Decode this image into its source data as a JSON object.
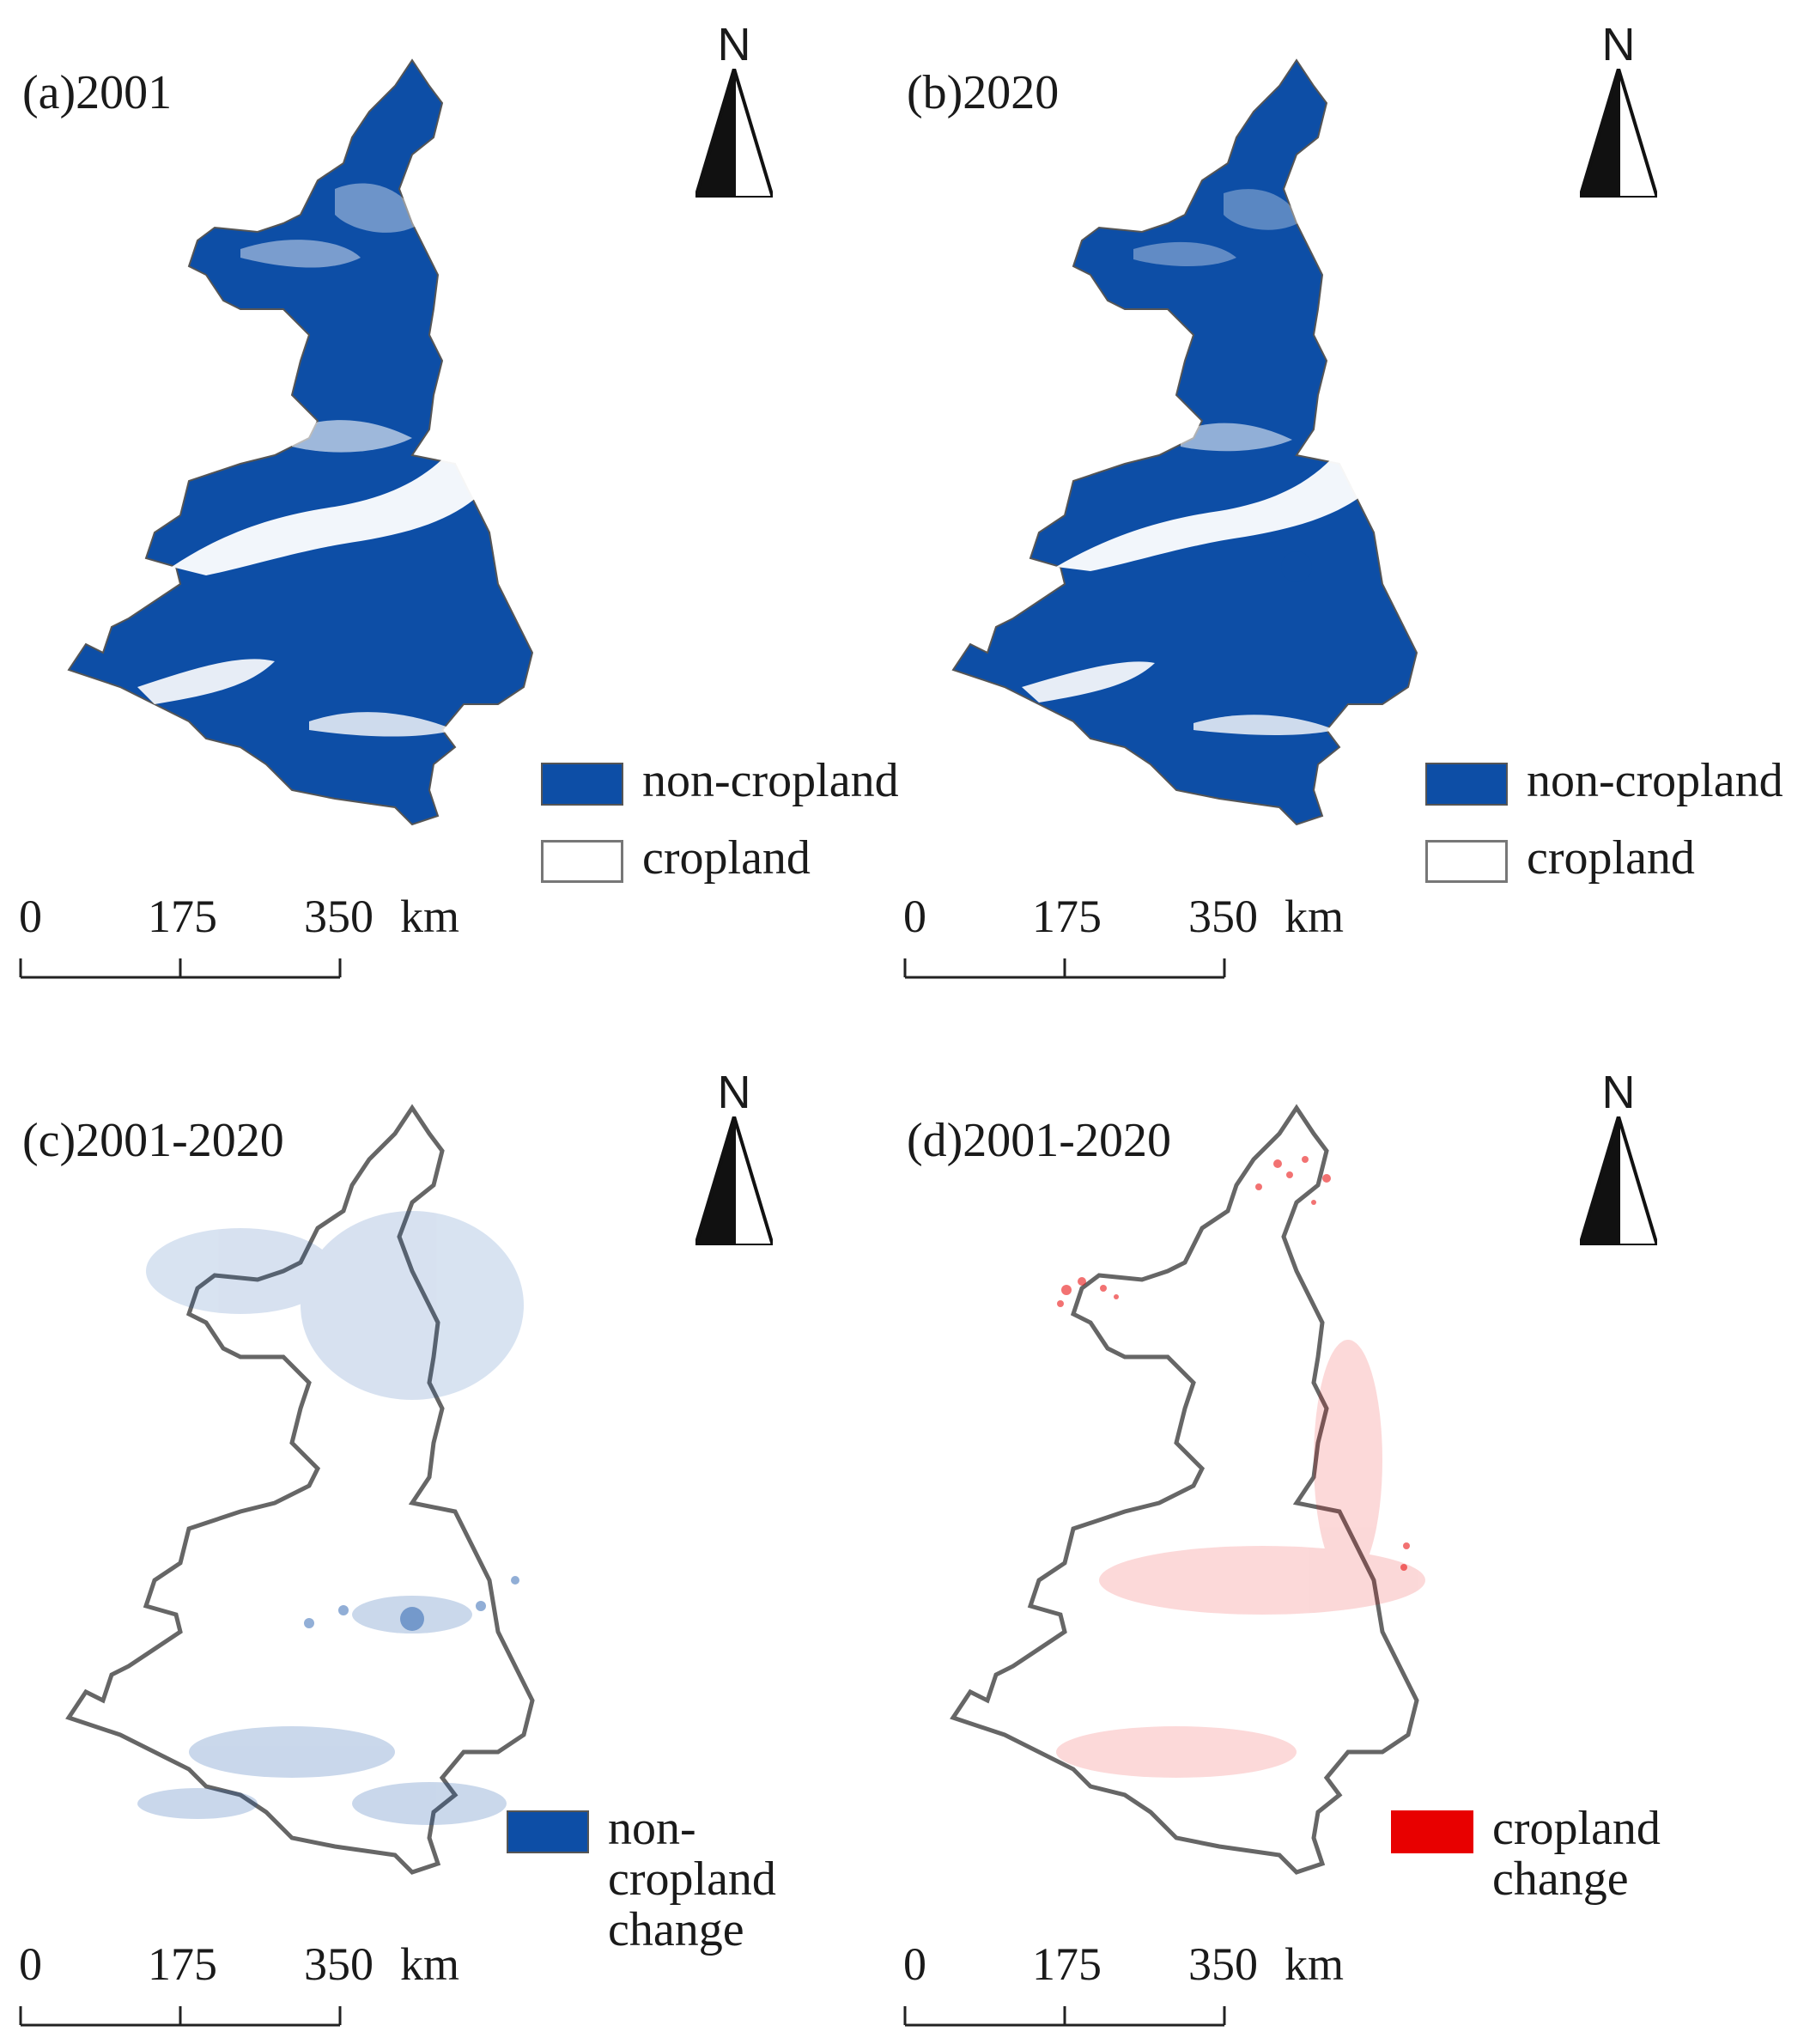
{
  "panels": [
    {
      "id": "a",
      "label": "(a)2001",
      "legend": [
        {
          "label": "non-cropland",
          "swatch": "#0d4ea6",
          "border": "#555555"
        },
        {
          "label": "cropland",
          "swatch": "#ffffff",
          "border": "#777777"
        }
      ]
    },
    {
      "id": "b",
      "label": "(b)2020",
      "legend": [
        {
          "label": "non-cropland",
          "swatch": "#0d4ea6",
          "border": "#555555"
        },
        {
          "label": "cropland",
          "swatch": "#ffffff",
          "border": "#777777"
        }
      ]
    },
    {
      "id": "c",
      "label": "(c)2001-2020",
      "legend": [
        {
          "label": "non-cropland change",
          "swatch": "#0d4ea6",
          "border": "#555555"
        }
      ]
    },
    {
      "id": "d",
      "label": "(d)2001-2020",
      "legend": [
        {
          "label": "cropland change",
          "swatch": "#e80000",
          "border": "#e80000"
        }
      ]
    }
  ],
  "north_arrow": {
    "letter": "N"
  },
  "scalebar": {
    "ticks": [
      "0",
      "175",
      "350"
    ],
    "unit": "km"
  },
  "colors": {
    "non_cropland": "#0d4ea6",
    "cropland": "#ffffff",
    "non_cropland_change": "#0d4ea6",
    "cropland_change": "#e80000",
    "outline": "#666666"
  }
}
